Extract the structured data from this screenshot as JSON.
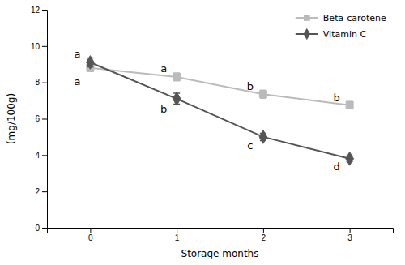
{
  "chart_data": {
    "type": "line",
    "x": [
      0,
      1,
      2,
      3
    ],
    "xlim": [
      -0.5,
      3.5
    ],
    "xticks": [
      0,
      1,
      2,
      3
    ],
    "ylim": [
      0,
      12
    ],
    "yticks": [
      0,
      2,
      4,
      6,
      8,
      10,
      12
    ],
    "xlabel": "Storage months",
    "ylabel": "(mg/100g)",
    "grid": false,
    "legend": "upper right",
    "series": [
      {
        "name": "Beta-carotene",
        "color": "#bbbbbb",
        "marker": "square",
        "values": [
          8.8,
          8.3,
          7.35,
          6.75
        ],
        "errors": [
          0.2,
          0.22,
          0.22,
          0.2
        ]
      },
      {
        "name": "Vitamin C",
        "color": "#555555",
        "marker": "diamond",
        "values": [
          9.1,
          7.1,
          5.0,
          3.8
        ],
        "errors": [
          0.25,
          0.3,
          0.2,
          0.15
        ]
      }
    ],
    "annotations": [
      {
        "text": "a",
        "x": 0,
        "y": 9.55
      },
      {
        "text": "b",
        "x": 1,
        "y": 6.55
      },
      {
        "text": "c",
        "x": 2,
        "y": 4.55
      },
      {
        "text": "d",
        "x": 3,
        "y": 3.35
      },
      {
        "text": "a",
        "x": 0,
        "y": 8.05
      },
      {
        "text": "a",
        "x": 1,
        "y": 8.75
      },
      {
        "text": "b",
        "x": 2,
        "y": 7.78
      },
      {
        "text": "b",
        "x": 3,
        "y": 7.15
      }
    ]
  }
}
